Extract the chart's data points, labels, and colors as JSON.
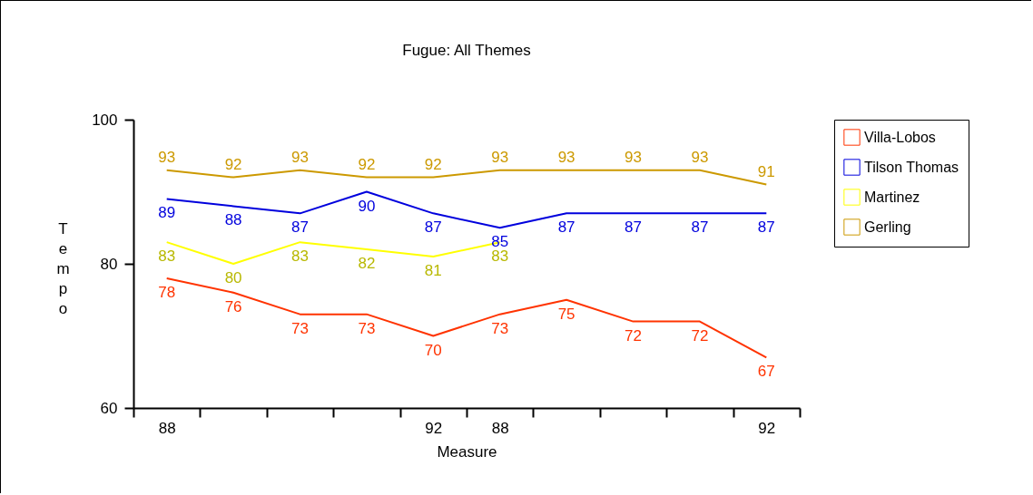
{
  "chart_data": {
    "type": "line",
    "title": "Fugue:  All Themes",
    "xlabel": "Measure",
    "ylabel": "Tempo",
    "categories": [
      "88",
      null,
      null,
      null,
      "92",
      "88",
      null,
      null,
      null,
      "92"
    ],
    "series": [
      {
        "name": "Villa-Lobos",
        "color": "#ff3300",
        "values": [
          78,
          76,
          73,
          73,
          70,
          73,
          75,
          72,
          72,
          67
        ]
      },
      {
        "name": "Tilson Thomas",
        "color": "#0000dd",
        "values": [
          89,
          88,
          87,
          90,
          87,
          85,
          87,
          87,
          87,
          87
        ]
      },
      {
        "name": "Martinez",
        "color": "#ffff00",
        "values": [
          83,
          80,
          83,
          82,
          81,
          83,
          null,
          null,
          null,
          null
        ]
      },
      {
        "name": "Gerling",
        "color": "#cc9900",
        "values": [
          93,
          92,
          93,
          92,
          92,
          93,
          93,
          93,
          93,
          91
        ]
      }
    ],
    "ylim": [
      60,
      100
    ],
    "yticks": [
      60,
      80,
      100
    ],
    "data_labels": true,
    "legend": "right",
    "grid": false
  }
}
